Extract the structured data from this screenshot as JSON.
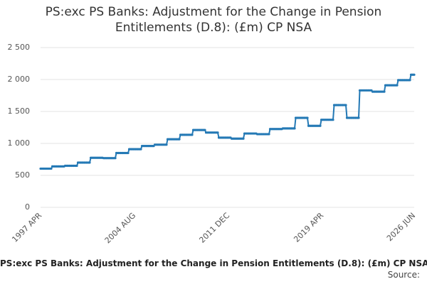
{
  "chart_data": {
    "type": "line",
    "title": "PS:exc PS Banks: Adjustment for the Change in Pension Entitlements (D.8): (£m) CP NSA",
    "source": "Source:",
    "categories": [
      "1997 APR",
      null,
      null,
      null,
      null,
      null,
      null,
      null,
      null,
      null,
      null,
      null,
      null,
      null,
      null,
      null,
      null,
      null,
      null,
      null,
      null,
      null,
      null,
      null,
      null,
      null,
      null,
      null,
      null,
      null,
      null,
      null,
      null,
      null,
      null,
      null,
      null,
      null,
      null,
      null,
      null,
      null,
      null,
      null,
      null,
      null,
      null,
      null,
      null,
      null,
      null,
      null,
      null,
      null,
      null,
      null,
      null,
      null,
      null,
      null,
      null,
      null,
      null,
      null,
      null,
      null,
      null,
      null,
      null,
      null,
      null,
      null,
      null,
      null,
      null,
      null,
      null,
      null,
      null,
      null,
      null,
      null,
      null,
      null,
      null,
      null,
      null,
      null,
      "2004 AUG",
      null,
      null,
      null,
      null,
      null,
      null,
      null,
      null,
      null,
      null,
      null,
      null,
      null,
      null,
      null,
      null,
      null,
      null,
      null,
      null,
      null,
      null,
      null,
      null,
      null,
      null,
      null,
      null,
      null,
      null,
      null,
      null,
      null,
      null,
      null,
      null,
      null,
      null,
      null,
      null,
      null,
      null,
      null,
      null,
      null,
      null,
      null,
      null,
      null,
      null,
      null,
      null,
      null,
      null,
      null,
      null,
      null,
      null,
      null,
      null,
      null,
      null,
      null,
      null,
      null,
      null,
      null,
      null,
      null,
      null,
      null,
      null,
      null,
      null,
      null,
      null,
      null,
      null,
      null,
      null,
      null,
      null,
      null,
      null,
      null,
      null,
      null,
      "2011 DEC",
      null,
      null,
      null,
      null,
      null,
      null,
      null,
      null,
      null,
      null,
      null,
      null,
      null,
      null,
      null,
      null,
      null,
      null,
      null,
      null,
      null,
      null,
      null,
      null,
      null,
      null,
      null,
      null,
      null,
      null,
      null,
      null,
      null,
      null,
      null,
      null,
      null,
      null,
      null,
      null,
      null,
      null,
      null,
      null,
      null,
      null,
      null,
      null,
      null,
      null,
      null,
      null,
      null,
      null,
      null,
      null,
      null,
      null,
      null,
      null,
      null,
      null,
      null,
      null,
      null,
      null,
      null,
      null,
      null,
      null,
      null,
      null,
      null,
      null,
      null,
      null,
      null,
      null,
      null,
      null,
      null,
      null,
      null,
      null,
      null,
      null,
      null,
      "2019 APR",
      null,
      null,
      null,
      null,
      null,
      null,
      null,
      null,
      null,
      null,
      null,
      null,
      null,
      null,
      null,
      null,
      null,
      null,
      null,
      null,
      null,
      null,
      null,
      null,
      null,
      null,
      null,
      null,
      null,
      null,
      null,
      null,
      null,
      null,
      null,
      null,
      null,
      null,
      null,
      null,
      null,
      null,
      null,
      null,
      null,
      null,
      null,
      null,
      null,
      null,
      null,
      null,
      null,
      null,
      null,
      null,
      null,
      null,
      null,
      null,
      null,
      null,
      null,
      null,
      null,
      null,
      null,
      null,
      null,
      null,
      null,
      null,
      null,
      null,
      null,
      null,
      null,
      null,
      null,
      null,
      null,
      null,
      null,
      null,
      null,
      "2026 JUN"
    ],
    "series": [
      {
        "name": "PS:exc PS Banks",
        "color": "#2479b5",
        "values": [
          605,
          605,
          605,
          605,
          605,
          605,
          605,
          605,
          605,
          605,
          605,
          640,
          640,
          640,
          640,
          640,
          640,
          640,
          640,
          640,
          640,
          640,
          640,
          650,
          650,
          650,
          650,
          650,
          650,
          650,
          650,
          650,
          650,
          650,
          650,
          700,
          700,
          700,
          700,
          700,
          700,
          700,
          700,
          700,
          700,
          700,
          700,
          775,
          775,
          775,
          775,
          775,
          775,
          775,
          775,
          775,
          775,
          775,
          775,
          770,
          770,
          770,
          770,
          770,
          770,
          770,
          770,
          770,
          770,
          770,
          770,
          850,
          850,
          850,
          850,
          850,
          850,
          850,
          850,
          850,
          850,
          850,
          850,
          910,
          910,
          910,
          910,
          910,
          910,
          910,
          910,
          910,
          910,
          910,
          910,
          960,
          960,
          960,
          960,
          960,
          960,
          960,
          960,
          960,
          960,
          960,
          960,
          980,
          980,
          980,
          980,
          980,
          980,
          980,
          980,
          980,
          980,
          980,
          980,
          1065,
          1065,
          1065,
          1065,
          1065,
          1065,
          1065,
          1065,
          1065,
          1065,
          1065,
          1065,
          1135,
          1135,
          1135,
          1135,
          1135,
          1135,
          1135,
          1135,
          1135,
          1135,
          1135,
          1135,
          1210,
          1210,
          1210,
          1210,
          1210,
          1210,
          1210,
          1210,
          1210,
          1210,
          1210,
          1210,
          1170,
          1170,
          1170,
          1170,
          1170,
          1170,
          1170,
          1170,
          1170,
          1170,
          1170,
          1170,
          1090,
          1090,
          1090,
          1090,
          1090,
          1090,
          1090,
          1090,
          1090,
          1090,
          1090,
          1090,
          1075,
          1075,
          1075,
          1075,
          1075,
          1075,
          1075,
          1075,
          1075,
          1075,
          1075,
          1075,
          1155,
          1155,
          1155,
          1155,
          1155,
          1155,
          1155,
          1155,
          1155,
          1155,
          1155,
          1155,
          1145,
          1145,
          1145,
          1145,
          1145,
          1145,
          1145,
          1145,
          1145,
          1145,
          1145,
          1145,
          1225,
          1225,
          1225,
          1225,
          1225,
          1225,
          1225,
          1225,
          1225,
          1225,
          1225,
          1225,
          1235,
          1235,
          1235,
          1235,
          1235,
          1235,
          1235,
          1235,
          1235,
          1235,
          1235,
          1235,
          1400,
          1400,
          1400,
          1400,
          1400,
          1400,
          1400,
          1400,
          1400,
          1400,
          1400,
          1400,
          1275,
          1275,
          1275,
          1275,
          1275,
          1275,
          1275,
          1275,
          1275,
          1275,
          1275,
          1275,
          1370,
          1370,
          1370,
          1370,
          1370,
          1370,
          1370,
          1370,
          1370,
          1370,
          1370,
          1370,
          1600,
          1600,
          1600,
          1600,
          1600,
          1600,
          1600,
          1600,
          1600,
          1600,
          1600,
          1600,
          1400,
          1400,
          1400,
          1400,
          1400,
          1400,
          1400,
          1400,
          1400,
          1400,
          1400,
          1400,
          1830,
          1830,
          1830,
          1830,
          1830,
          1830,
          1830,
          1830,
          1830,
          1830,
          1830,
          1830,
          1810,
          1810,
          1810,
          1810,
          1810,
          1810,
          1810,
          1810,
          1810,
          1810,
          1810,
          1810,
          1910,
          1910,
          1910,
          1910,
          1910,
          1910,
          1910,
          1910,
          1910,
          1910,
          1910,
          1910,
          1990,
          1990,
          1990,
          1990,
          1990,
          1990,
          1990,
          1990,
          1990,
          1990,
          1990,
          1990,
          2075,
          2075,
          2075,
          2075
        ]
      }
    ],
    "ylim": [
      0,
      2500
    ],
    "yticks": [
      0,
      500,
      {
        "value": 1000,
        "label": "1 000"
      },
      {
        "value": 1500,
        "label": "1 500"
      },
      {
        "value": 2000,
        "label": "2 000"
      },
      {
        "value": 2500,
        "label": "2 500"
      }
    ],
    "grid": true
  }
}
